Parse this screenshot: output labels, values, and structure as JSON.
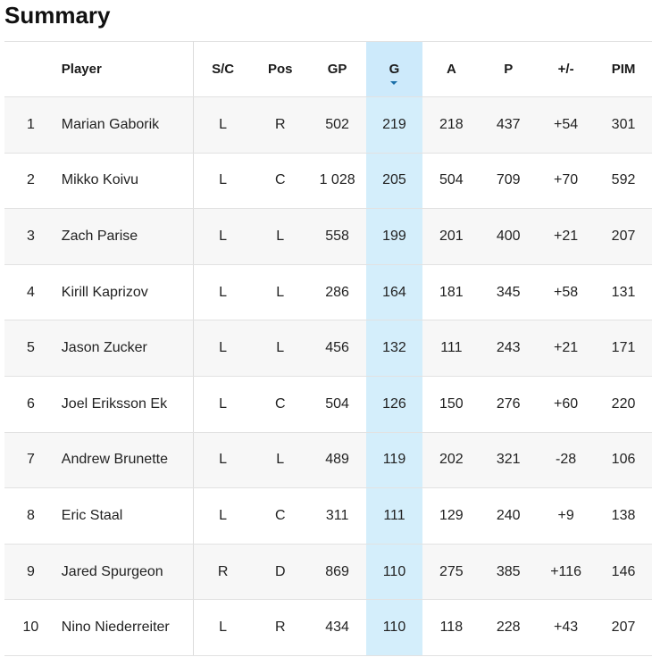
{
  "title": "Summary",
  "columns": {
    "rank": "",
    "player": "Player",
    "sc": "S/C",
    "pos": "Pos",
    "gp": "GP",
    "g": "G",
    "a": "A",
    "p": "P",
    "pm": "+/-",
    "pim": "PIM"
  },
  "sort": {
    "column": "G",
    "direction": "descending",
    "indicator": "caret-down-icon"
  },
  "colors": {
    "sorted_column_bg": "#d4eefb",
    "plus_minus_positive": "#3b8a3b",
    "plus_minus_negative": "#b0102a"
  },
  "rows": [
    {
      "rank": "1",
      "player": "Marian Gaborik",
      "sc": "L",
      "pos": "R",
      "gp": "502",
      "g": "219",
      "a": "218",
      "p": "437",
      "pm": "+54",
      "pim": "301"
    },
    {
      "rank": "2",
      "player": "Mikko Koivu",
      "sc": "L",
      "pos": "C",
      "gp": "1 028",
      "g": "205",
      "a": "504",
      "p": "709",
      "pm": "+70",
      "pim": "592"
    },
    {
      "rank": "3",
      "player": "Zach Parise",
      "sc": "L",
      "pos": "L",
      "gp": "558",
      "g": "199",
      "a": "201",
      "p": "400",
      "pm": "+21",
      "pim": "207"
    },
    {
      "rank": "4",
      "player": "Kirill Kaprizov",
      "sc": "L",
      "pos": "L",
      "gp": "286",
      "g": "164",
      "a": "181",
      "p": "345",
      "pm": "+58",
      "pim": "131"
    },
    {
      "rank": "5",
      "player": "Jason Zucker",
      "sc": "L",
      "pos": "L",
      "gp": "456",
      "g": "132",
      "a": "111",
      "p": "243",
      "pm": "+21",
      "pim": "171"
    },
    {
      "rank": "6",
      "player": "Joel Eriksson Ek",
      "sc": "L",
      "pos": "C",
      "gp": "504",
      "g": "126",
      "a": "150",
      "p": "276",
      "pm": "+60",
      "pim": "220"
    },
    {
      "rank": "7",
      "player": "Andrew Brunette",
      "sc": "L",
      "pos": "L",
      "gp": "489",
      "g": "119",
      "a": "202",
      "p": "321",
      "pm": "-28",
      "pim": "106"
    },
    {
      "rank": "8",
      "player": "Eric Staal",
      "sc": "L",
      "pos": "C",
      "gp": "311",
      "g": "111",
      "a": "129",
      "p": "240",
      "pm": "+9",
      "pim": "138"
    },
    {
      "rank": "9",
      "player": "Jared Spurgeon",
      "sc": "R",
      "pos": "D",
      "gp": "869",
      "g": "110",
      "a": "275",
      "p": "385",
      "pm": "+116",
      "pim": "146"
    },
    {
      "rank": "10",
      "player": "Nino Niederreiter",
      "sc": "L",
      "pos": "R",
      "gp": "434",
      "g": "110",
      "a": "118",
      "p": "228",
      "pm": "+43",
      "pim": "207"
    }
  ]
}
